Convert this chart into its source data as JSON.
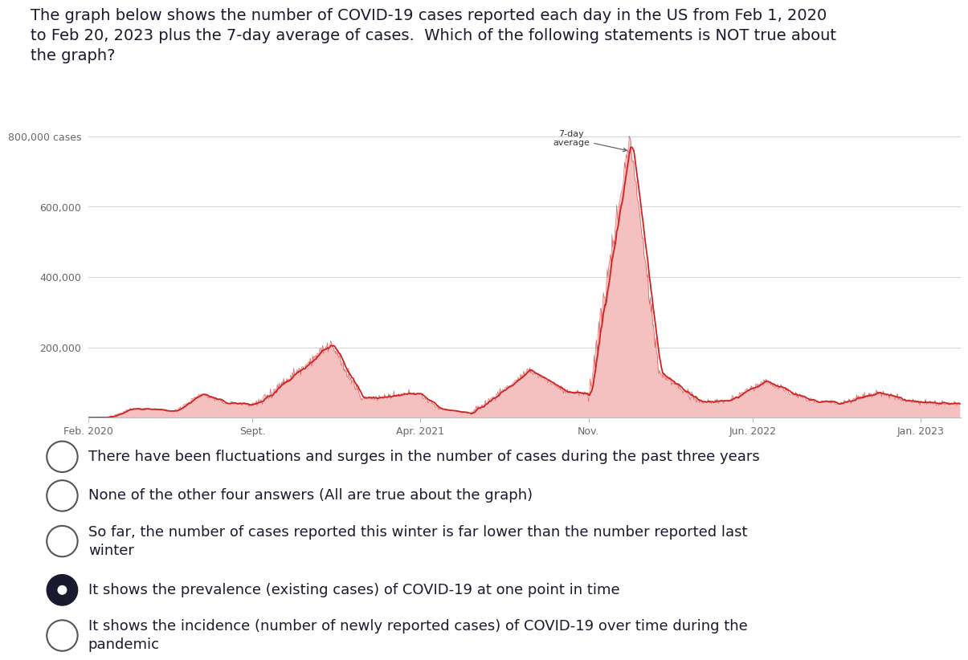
{
  "title_line1": "The graph below shows the number of COVID-19 cases reported each day in the US from Feb 1, 2020",
  "title_line2": "to Feb 20, 2023 plus the 7-day average of cases.  Which of the following statements is NOT true about",
  "title_line3": "the graph?",
  "title_fontsize": 14,
  "title_color": "#1a1a2e",
  "ytick_labels": [
    "",
    "200,000",
    "400,000",
    "600,000",
    "800,000 cases"
  ],
  "ytick_values": [
    0,
    200000,
    400000,
    600000,
    800000
  ],
  "xtick_labels": [
    "Feb. 2020",
    "Sept.",
    "Apr. 2021",
    "Nov.",
    "Jun. 2022",
    "Jan. 2023"
  ],
  "xtick_positions": [
    0,
    210,
    425,
    640,
    850,
    1065
  ],
  "line_color": "#cc2222",
  "fill_color": "#f5c0c0",
  "annotation_text": "7-day\naverage",
  "bg_color": "#ffffff",
  "grid_color": "#cccccc",
  "text_color": "#1a1a2e",
  "options": [
    {
      "text": "There have been fluctuations and surges in the number of cases during the past three years",
      "selected": false,
      "multiline": false
    },
    {
      "text": "None of the other four answers (All are true about the graph)",
      "selected": false,
      "multiline": false
    },
    {
      "text": "So far, the number of cases reported this winter is far lower than the number reported last\nwinter",
      "selected": false,
      "multiline": true
    },
    {
      "text": "It shows the prevalence (existing cases) of COVID-19 at one point in time",
      "selected": true,
      "multiline": false
    },
    {
      "text": "It shows the incidence (number of newly reported cases) of COVID-19 over time during the\npandemic",
      "selected": false,
      "multiline": true
    }
  ],
  "n_days": 1116,
  "omicron_peak_day": 693,
  "omicron_peak": 800000,
  "winter2021_peak_day": 310,
  "winter2021_peak": 210000,
  "delta_peak_day": 565,
  "delta_peak": 135000,
  "summer2022_peak_day": 865,
  "summer2022_peak": 105000
}
